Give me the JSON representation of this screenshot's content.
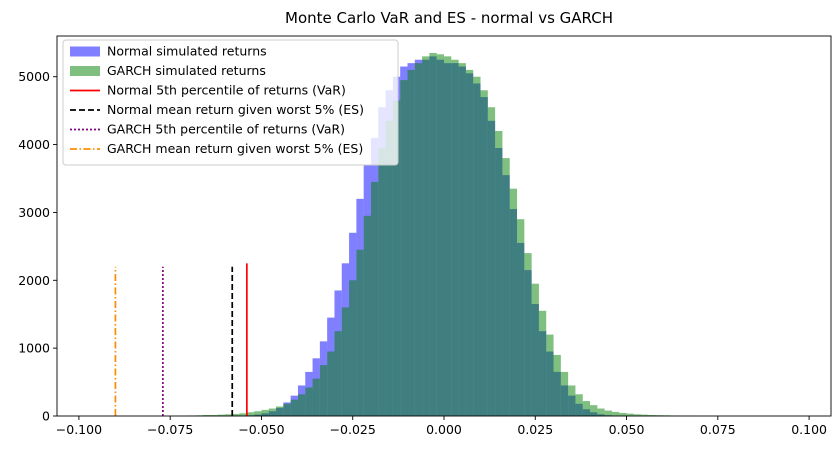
{
  "chart_data": {
    "type": "bar",
    "title": "Monte Carlo VaR and ES - normal vs GARCH",
    "xlabel": "",
    "ylabel": "",
    "xlim": [
      -0.106,
      0.106
    ],
    "ylim": [
      0,
      5600
    ],
    "grid": false,
    "legend_position": "top-left",
    "x_ticks": [
      -0.1,
      -0.075,
      -0.05,
      -0.025,
      0.0,
      0.025,
      0.05,
      0.075,
      0.1
    ],
    "x_tick_labels": [
      "−0.100",
      "−0.075",
      "−0.050",
      "−0.025",
      "0.000",
      "0.025",
      "0.050",
      "0.075",
      "0.100"
    ],
    "y_ticks": [
      0,
      1000,
      2000,
      3000,
      4000,
      5000
    ],
    "y_tick_labels": [
      "0",
      "1000",
      "2000",
      "3000",
      "4000",
      "5000"
    ],
    "bin_width": 0.002,
    "bin_centers": [
      -0.073,
      -0.071,
      -0.069,
      -0.067,
      -0.065,
      -0.063,
      -0.061,
      -0.059,
      -0.057,
      -0.055,
      -0.053,
      -0.051,
      -0.049,
      -0.047,
      -0.045,
      -0.043,
      -0.041,
      -0.039,
      -0.037,
      -0.035,
      -0.033,
      -0.031,
      -0.029,
      -0.027,
      -0.025,
      -0.023,
      -0.021,
      -0.019,
      -0.017,
      -0.015,
      -0.013,
      -0.011,
      -0.009,
      -0.007,
      -0.005,
      -0.003,
      -0.001,
      0.001,
      0.003,
      0.005,
      0.007,
      0.009,
      0.011,
      0.013,
      0.015,
      0.017,
      0.019,
      0.021,
      0.023,
      0.025,
      0.027,
      0.029,
      0.031,
      0.033,
      0.035,
      0.037,
      0.039,
      0.041,
      0.043,
      0.045,
      0.047,
      0.049,
      0.051,
      0.053,
      0.055,
      0.057,
      0.059,
      0.061,
      0.063,
      0.065,
      0.067,
      0.069,
      0.071,
      0.073,
      0.075,
      0.077,
      0.079
    ],
    "series": [
      {
        "name": "Normal simulated returns",
        "kind": "histogram",
        "color": "#0000ff",
        "opacity": 0.5,
        "values": [
          0,
          0,
          0,
          0,
          0,
          0,
          0,
          0,
          2,
          5,
          10,
          20,
          40,
          70,
          120,
          200,
          300,
          450,
          650,
          850,
          1100,
          1450,
          1850,
          2250,
          2700,
          3200,
          3700,
          4100,
          4550,
          4800,
          5000,
          5150,
          5200,
          5250,
          5250,
          5300,
          5250,
          5200,
          5200,
          5150,
          5050,
          4900,
          4700,
          4350,
          3950,
          3550,
          3050,
          2550,
          2150,
          1650,
          1250,
          950,
          650,
          450,
          300,
          180,
          100,
          55,
          25,
          12,
          5,
          2,
          0,
          0,
          0,
          0,
          0,
          0,
          0,
          0,
          0,
          0,
          0,
          0,
          0,
          0,
          0
        ]
      },
      {
        "name": "GARCH simulated returns",
        "kind": "histogram",
        "color": "#008000",
        "opacity": 0.5,
        "values": [
          3,
          5,
          8,
          10,
          15,
          15,
          20,
          25,
          30,
          40,
          55,
          70,
          90,
          110,
          140,
          180,
          240,
          320,
          420,
          550,
          750,
          950,
          1250,
          1600,
          2000,
          2450,
          2950,
          3450,
          3950,
          4350,
          4650,
          4950,
          5100,
          5200,
          5300,
          5350,
          5330,
          5300,
          5250,
          5200,
          5100,
          5000,
          4800,
          4550,
          4200,
          3800,
          3350,
          2900,
          2400,
          1950,
          1550,
          1200,
          900,
          650,
          450,
          320,
          220,
          160,
          110,
          80,
          60,
          45,
          35,
          25,
          20,
          15,
          12,
          10,
          8,
          6,
          5,
          3,
          2,
          2,
          1,
          1,
          1
        ]
      }
    ],
    "vlines": [
      {
        "name": "Normal 5th percentile of returns (VaR)",
        "x": -0.054,
        "ymax": 2250,
        "color": "#ff0000",
        "style": "solid"
      },
      {
        "name": "Normal mean return given worst 5% (ES)",
        "x": -0.058,
        "ymax": 2200,
        "color": "#000000",
        "style": "dashed"
      },
      {
        "name": "GARCH 5th percentile of returns (VaR)",
        "x": -0.077,
        "ymax": 2200,
        "color": "#800080",
        "style": "dotted"
      },
      {
        "name": "GARCH mean return given worst 5% (ES)",
        "x": -0.09,
        "ymax": 2200,
        "color": "#ff8c00",
        "style": "dashdot"
      }
    ],
    "overlap_color": "#417f7f"
  }
}
